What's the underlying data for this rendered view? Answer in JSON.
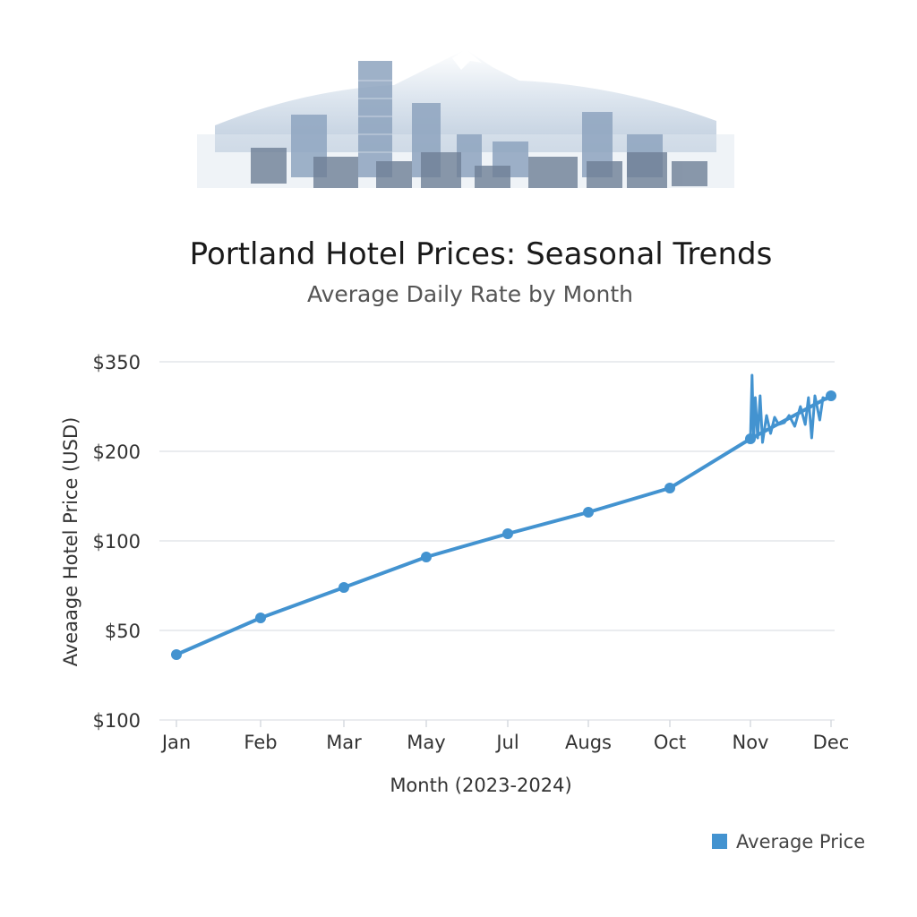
{
  "colors": {
    "series": "#4393d0",
    "grid": "#e3e6ea"
  },
  "chart_data": {
    "type": "line",
    "title": "Portland Hotel Prices: Seasonal Trends",
    "subtitle": "Average Daily Rate by Month",
    "xlabel": "Month (2023-2024)",
    "ylabel": "Aveaage Hotel Price (USD)",
    "categories": [
      "Jan",
      "Feb",
      "Mar",
      "May",
      "Jul",
      "Augs",
      "Oct",
      "Nov",
      "Dec"
    ],
    "y_tick_labels": [
      "$100",
      "$50",
      "$100",
      "$200",
      "$350"
    ],
    "y_tick_values": [
      0,
      1,
      2,
      3,
      4
    ],
    "ylim": [
      0,
      4
    ],
    "grid": true,
    "legend": {
      "position": "bottom-right",
      "entries": [
        "Average Price"
      ]
    },
    "series": [
      {
        "name": "Average Price",
        "values": [
          0.73,
          1.14,
          1.48,
          1.82,
          2.08,
          2.32,
          2.59,
          3.14,
          3.62
        ]
      }
    ],
    "noise_segment": {
      "between": [
        "Nov",
        "Dec"
      ],
      "x": [
        0,
        0.02,
        0.04,
        0.06,
        0.09,
        0.12,
        0.15,
        0.2,
        0.25,
        0.3,
        0.35,
        0.42,
        0.48,
        0.55,
        0.62,
        0.68,
        0.72,
        0.76,
        0.8,
        0.86,
        0.9,
        0.94,
        0.97,
        1.0
      ],
      "y": [
        3.14,
        3.85,
        3.12,
        3.6,
        3.15,
        3.62,
        3.1,
        3.4,
        3.2,
        3.38,
        3.3,
        3.32,
        3.4,
        3.28,
        3.5,
        3.3,
        3.6,
        3.15,
        3.62,
        3.35,
        3.6,
        3.58,
        3.62,
        3.62
      ]
    }
  }
}
